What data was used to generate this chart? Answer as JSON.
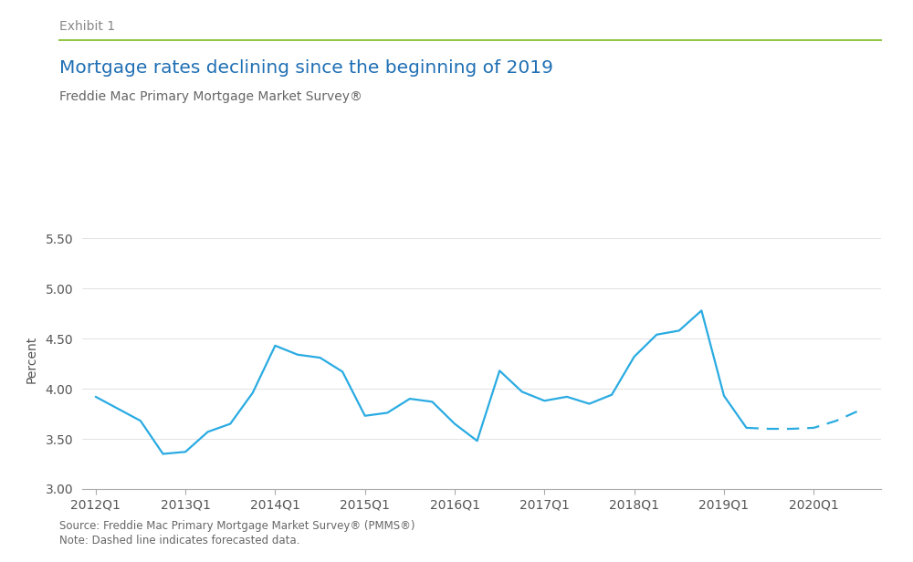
{
  "title": "Mortgage rates declining since the beginning of 2019",
  "subtitle": "Freddie Mac Primary Mortgage Market Survey®",
  "exhibit_label": "Exhibit 1",
  "ylabel": "Percent",
  "source_note": "Source: Freddie Mac Primary Mortgage Market Survey® (PMMS®)",
  "dashed_note": "Note: Dashed line indicates forecasted data.",
  "line_color": "#29ABE2",
  "ylim": [
    3.0,
    5.58
  ],
  "yticks": [
    3.0,
    3.5,
    4.0,
    4.5,
    5.0,
    5.5
  ],
  "solid_x": [
    2012.0,
    2012.25,
    2012.5,
    2012.75,
    2013.0,
    2013.25,
    2013.5,
    2013.75,
    2014.0,
    2014.25,
    2014.5,
    2014.75,
    2015.0,
    2015.25,
    2015.5,
    2015.75,
    2016.0,
    2016.25,
    2016.5,
    2016.75,
    2017.0,
    2017.25,
    2017.5,
    2017.75,
    2018.0,
    2018.25,
    2018.5,
    2018.75,
    2019.0,
    2019.25
  ],
  "solid_y": [
    3.92,
    3.8,
    3.68,
    3.35,
    3.37,
    3.57,
    3.65,
    3.96,
    4.43,
    4.34,
    4.31,
    4.17,
    3.73,
    3.76,
    3.9,
    3.87,
    3.65,
    3.48,
    4.18,
    3.97,
    3.88,
    3.92,
    3.85,
    3.94,
    4.32,
    4.54,
    4.58,
    4.78,
    3.93,
    3.61
  ],
  "dashed_x": [
    2019.25,
    2019.5,
    2019.75,
    2020.0,
    2020.25,
    2020.5
  ],
  "dashed_y": [
    3.61,
    3.6,
    3.6,
    3.61,
    3.68,
    3.78
  ],
  "xtick_positions": [
    2012.0,
    2013.0,
    2014.0,
    2015.0,
    2016.0,
    2017.0,
    2018.0,
    2019.0,
    2020.0
  ],
  "xtick_labels": [
    "2012Q1",
    "2013Q1",
    "2014Q1",
    "2015Q1",
    "2016Q1",
    "2017Q1",
    "2018Q1",
    "2019Q1",
    "2020Q1"
  ],
  "xlim": [
    2011.85,
    2020.75
  ],
  "title_color": "#1F6FB4",
  "subtitle_color": "#666666",
  "exhibit_color": "#888888",
  "axis_color": "#aaaaaa",
  "tick_label_color": "#555555",
  "green_line_color": "#8DC63F",
  "background_color": "#ffffff"
}
